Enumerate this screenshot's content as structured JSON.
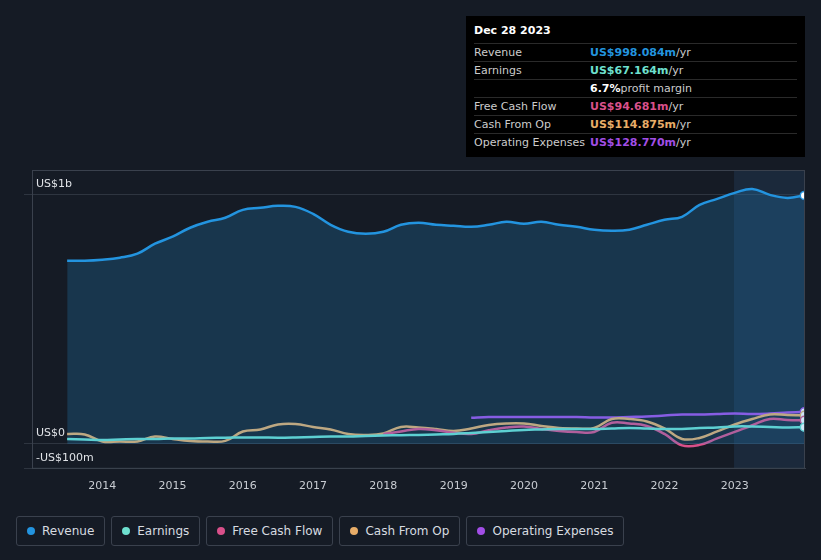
{
  "chart_data": {
    "type": "line",
    "x": [
      2013.5,
      2013.75,
      2014.0,
      2014.25,
      2014.5,
      2014.75,
      2015.0,
      2015.25,
      2015.5,
      2015.75,
      2016.0,
      2016.25,
      2016.5,
      2016.75,
      2017.0,
      2017.25,
      2017.5,
      2017.75,
      2018.0,
      2018.25,
      2018.5,
      2018.75,
      2019.0,
      2019.25,
      2019.5,
      2019.75,
      2020.0,
      2020.25,
      2020.5,
      2020.75,
      2021.0,
      2021.25,
      2021.5,
      2021.75,
      2022.0,
      2022.25,
      2022.5,
      2022.75,
      2023.0,
      2023.25,
      2023.5,
      2023.75,
      2023.99
    ],
    "series": [
      {
        "name": "Revenue",
        "color": "#2394df",
        "values": [
          736,
          736,
          740,
          748,
          764,
          804,
          832,
          868,
          892,
          908,
          940,
          948,
          956,
          952,
          924,
          880,
          852,
          844,
          852,
          880,
          888,
          880,
          876,
          872,
          880,
          892,
          884,
          892,
          880,
          872,
          860,
          856,
          860,
          880,
          900,
          912,
          960,
          984,
          1008,
          1024,
          1000,
          988,
          998
        ]
      },
      {
        "name": "Earnings",
        "color": "#6ee0cf",
        "values": [
          20,
          18,
          16,
          18,
          20,
          20,
          22,
          22,
          24,
          25,
          26,
          26,
          25,
          26,
          28,
          30,
          30,
          32,
          34,
          35,
          36,
          38,
          40,
          44,
          48,
          52,
          56,
          58,
          60,
          60,
          60,
          62,
          64,
          62,
          60,
          60,
          64,
          66,
          70,
          70,
          68,
          66,
          67
        ]
      },
      {
        "name": "Free Cash Flow",
        "color": "#d9508a",
        "values": [
          null,
          null,
          null,
          null,
          null,
          null,
          null,
          null,
          null,
          null,
          null,
          null,
          null,
          null,
          null,
          null,
          null,
          null,
          40,
          50,
          60,
          55,
          45,
          40,
          55,
          66,
          70,
          60,
          52,
          48,
          48,
          85,
          82,
          72,
          40,
          -6,
          -4,
          22,
          48,
          75,
          100,
          96,
          95
        ]
      },
      {
        "name": "Cash From Op",
        "color": "#e8ad68",
        "values": [
          40,
          38,
          10,
          10,
          10,
          30,
          20,
          12,
          10,
          12,
          50,
          58,
          78,
          80,
          68,
          58,
          40,
          36,
          42,
          68,
          66,
          60,
          52,
          62,
          76,
          82,
          82,
          72,
          64,
          62,
          64,
          100,
          100,
          90,
          62,
          20,
          24,
          50,
          78,
          100,
          118,
          116,
          115
        ]
      },
      {
        "name": "Operating Expenses",
        "color": "#a24ee6",
        "values": [
          null,
          null,
          null,
          null,
          null,
          null,
          null,
          null,
          null,
          null,
          null,
          null,
          null,
          null,
          null,
          null,
          null,
          null,
          null,
          null,
          null,
          null,
          null,
          105,
          108,
          108,
          108,
          108,
          108,
          108,
          106,
          106,
          108,
          110,
          114,
          118,
          118,
          120,
          122,
          120,
          122,
          126,
          129
        ]
      }
    ],
    "xlim": [
      2013,
      2024
    ],
    "xticks": [
      2014,
      2015,
      2016,
      2017,
      2018,
      2019,
      2020,
      2021,
      2022,
      2023
    ],
    "ylim": [
      -100,
      1100
    ],
    "yticks": [
      {
        "value": -100,
        "label": "-US$100m"
      },
      {
        "value": 0,
        "label": "US$0"
      },
      {
        "value": 1000,
        "label": "US$1b"
      }
    ],
    "grid": true,
    "legend": "bottom"
  },
  "tooltip": {
    "date": "Dec 28 2023",
    "rows": [
      {
        "label": "Revenue",
        "value": "US$998.084m",
        "unit": "/yr"
      },
      {
        "label": "Earnings",
        "value": "US$67.164m",
        "unit": "/yr"
      },
      {
        "label": null,
        "value": "6.7%",
        "unit": "profit margin"
      },
      {
        "label": "Free Cash Flow",
        "value": "US$94.681m",
        "unit": "/yr"
      },
      {
        "label": "Cash From Op",
        "value": "US$114.875m",
        "unit": "/yr"
      },
      {
        "label": "Operating Expenses",
        "value": "US$128.770m",
        "unit": "/yr"
      }
    ]
  }
}
